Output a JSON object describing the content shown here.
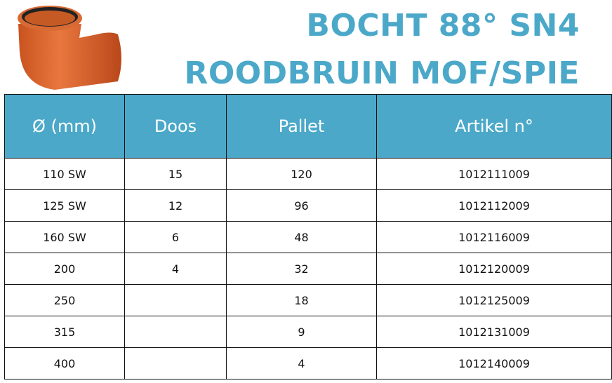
{
  "title_line1": "BOCHT 88° SN4",
  "title_line2": "ROODBRUIN MOF/SPIE",
  "colors": {
    "accent": "#4ba8c9",
    "pipe": "#d8622a"
  },
  "table": {
    "headers": [
      "Ø (mm)",
      "Doos",
      "Pallet",
      "Artikel n°"
    ],
    "rows": [
      [
        "110 SW",
        "15",
        "120",
        "1012111009"
      ],
      [
        "125 SW",
        "12",
        "96",
        "1012112009"
      ],
      [
        "160 SW",
        "6",
        "48",
        "1012116009"
      ],
      [
        "200",
        "4",
        "32",
        "1012120009"
      ],
      [
        "250",
        "",
        "18",
        "1012125009"
      ],
      [
        "315",
        "",
        "9",
        "1012131009"
      ],
      [
        "400",
        "",
        "4",
        "1012140009"
      ]
    ]
  }
}
